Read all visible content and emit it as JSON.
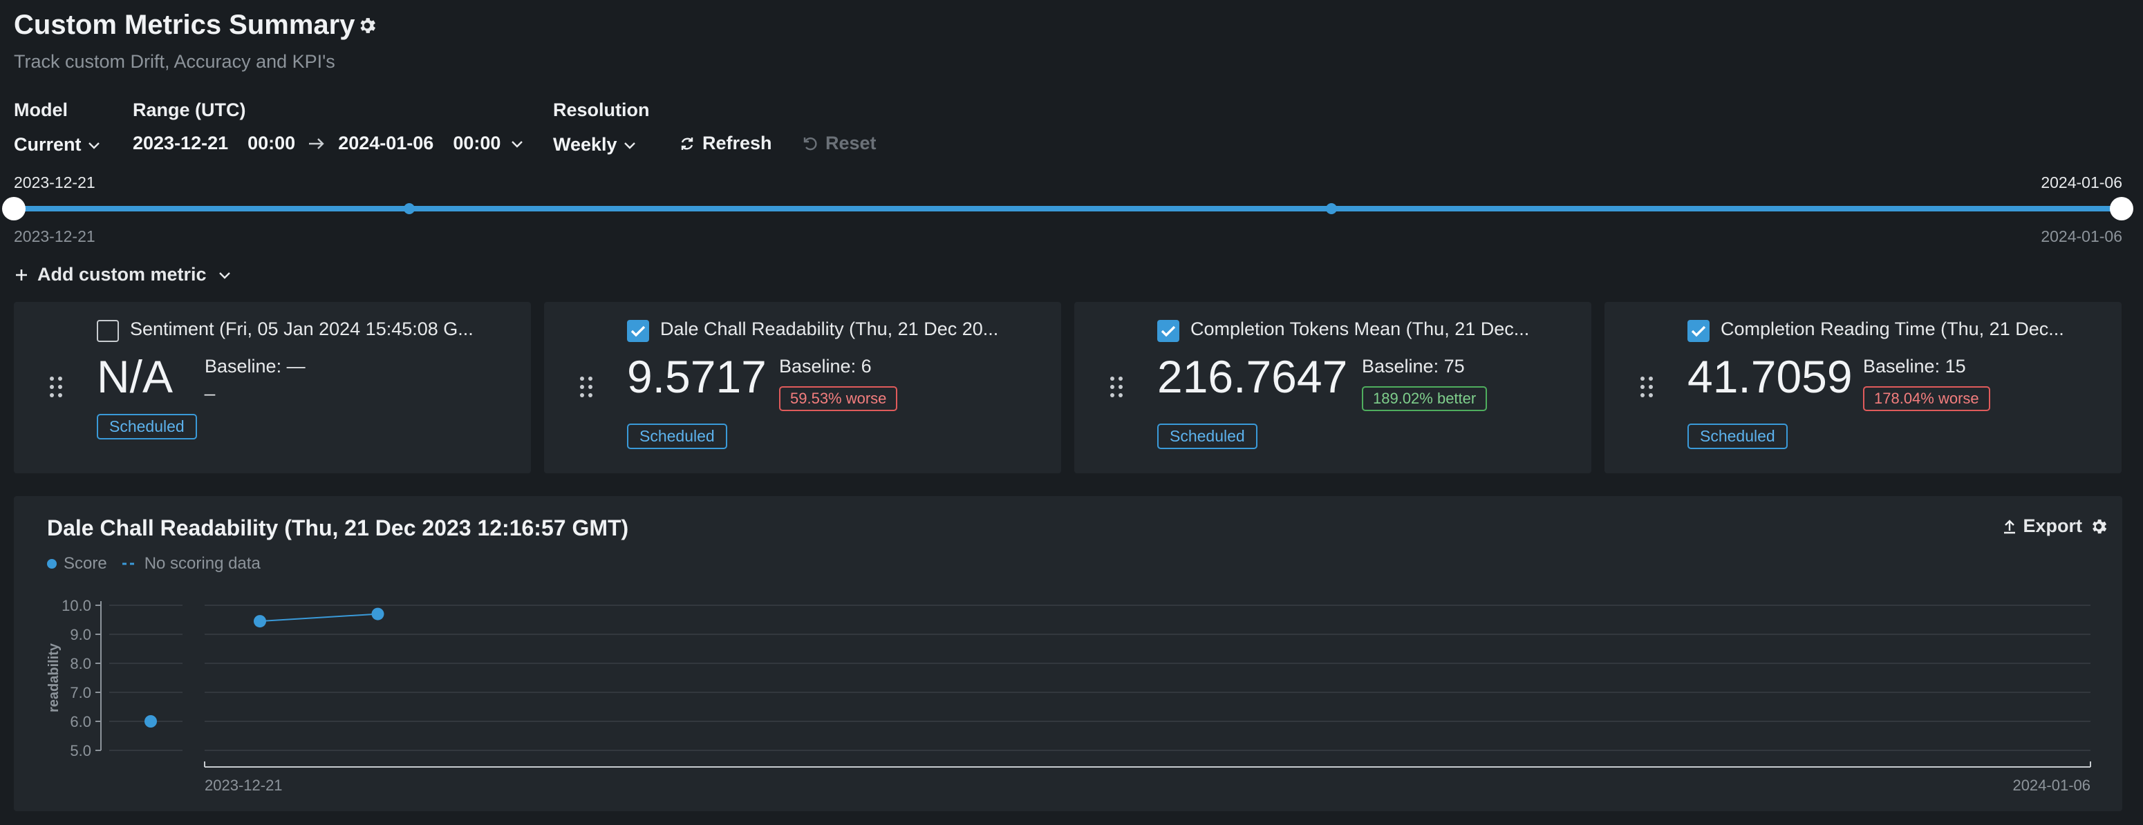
{
  "header": {
    "title": "Custom Metrics Summary",
    "subtitle": "Track custom Drift, Accuracy and KPI's"
  },
  "controls": {
    "model_label": "Model",
    "model_value": "Current",
    "range_label": "Range (UTC)",
    "range_start_date": "2023-12-21",
    "range_start_time": "00:00",
    "range_end_date": "2024-01-06",
    "range_end_time": "00:00",
    "resolution_label": "Resolution",
    "resolution_value": "Weekly",
    "refresh_label": "Refresh",
    "reset_label": "Reset"
  },
  "range_slider": {
    "start_top": "2023-12-21",
    "end_top": "2024-01-06",
    "start_bottom": "2023-12-21",
    "end_bottom": "2024-01-06"
  },
  "add_metric_label": "Add custom metric",
  "cards": [
    {
      "checked": false,
      "title": "Sentiment (Fri, 05 Jan 2024 15:45:08 G...",
      "value": "N/A",
      "baseline": "Baseline: —",
      "baseline_extra": "_",
      "change": "",
      "change_kind": "",
      "status": "Scheduled"
    },
    {
      "checked": true,
      "title": "Dale Chall Readability (Thu, 21 Dec 20...",
      "value": "9.5717",
      "baseline": "Baseline: 6",
      "baseline_extra": "",
      "change": "59.53% worse",
      "change_kind": "worse",
      "status": "Scheduled"
    },
    {
      "checked": true,
      "title": "Completion Tokens Mean (Thu, 21 Dec...",
      "value": "216.7647",
      "baseline": "Baseline: 75",
      "baseline_extra": "",
      "change": "189.02% better",
      "change_kind": "better",
      "status": "Scheduled"
    },
    {
      "checked": true,
      "title": "Completion Reading Time (Thu, 21 Dec...",
      "value": "41.7059",
      "baseline": "Baseline: 15",
      "baseline_extra": "",
      "change": "178.04% worse",
      "change_kind": "worse",
      "status": "Scheduled"
    }
  ],
  "chart_panel": {
    "title": "Dale Chall Readability (Thu, 21 Dec 2023 12:16:57 GMT)",
    "export_label": "Export",
    "legend_score": "Score",
    "legend_no_data": "No scoring data"
  },
  "chart_data": {
    "type": "line",
    "ylabel": "readability",
    "ylim": [
      5.0,
      10.0
    ],
    "yticks": [
      "10.0",
      "9.0",
      "8.0",
      "7.0",
      "6.0",
      "5.0"
    ],
    "x_start_label": "2023-12-21",
    "x_end_label": "2024-01-06",
    "baseline_point": {
      "y": 6.0
    },
    "series": [
      {
        "name": "Score",
        "points": [
          {
            "x": "2023-12-21",
            "y": 9.45
          },
          {
            "x": "2023-12-22",
            "y": 9.7
          }
        ]
      }
    ],
    "colors": {
      "series": "#3a9ad9",
      "grid": "#33383e",
      "axis": "#8d949b"
    },
    "grid": true
  },
  "colors": {
    "background": "#191d21",
    "card": "#22272c",
    "accent": "#3a9ad9",
    "worse": "#e05b5b",
    "better": "#4fae5e"
  }
}
